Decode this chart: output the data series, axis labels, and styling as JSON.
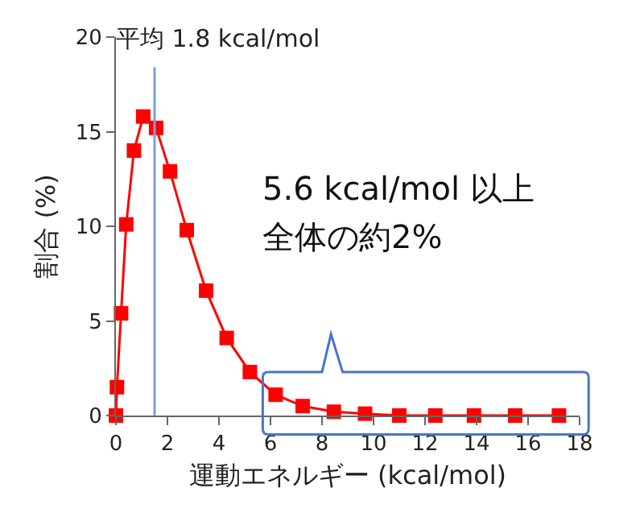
{
  "chart_data": {
    "type": "line",
    "xlabel": "運動エネルギー (kcal/mol)",
    "ylabel": "割合 (%)",
    "x": [
      0,
      0.04,
      0.2,
      0.4,
      0.7,
      1.06,
      1.56,
      2.1,
      2.75,
      3.5,
      4.3,
      5.2,
      6.2,
      7.25,
      8.46,
      9.67,
      11.0,
      12.4,
      13.9,
      15.5,
      17.2
    ],
    "series": [
      {
        "color": "#ff0000",
        "values": [
          0,
          1.5,
          5.4,
          10.1,
          14,
          15.8,
          15.2,
          12.9,
          9.8,
          6.6,
          4.1,
          2.3,
          1.1,
          0.5,
          0.2,
          0.1,
          0,
          0,
          0,
          0,
          0
        ]
      }
    ],
    "xlim": [
      0,
      18
    ],
    "xticks": [
      0,
      2,
      4,
      6,
      8,
      10,
      12,
      14,
      16,
      18
    ],
    "ylim": [
      0,
      20
    ],
    "yticks": [
      0,
      5,
      10,
      15,
      20
    ],
    "grid": false,
    "marker": "square",
    "line_style": "solid",
    "ref_lines": [
      {
        "axis": "x",
        "value": 1.5,
        "label": "平均 1.8 kcal/mol",
        "color": "#7ba0d8"
      }
    ],
    "annotations": [
      "5.6 kcal/mol 以上",
      "全体の約2%"
    ]
  }
}
